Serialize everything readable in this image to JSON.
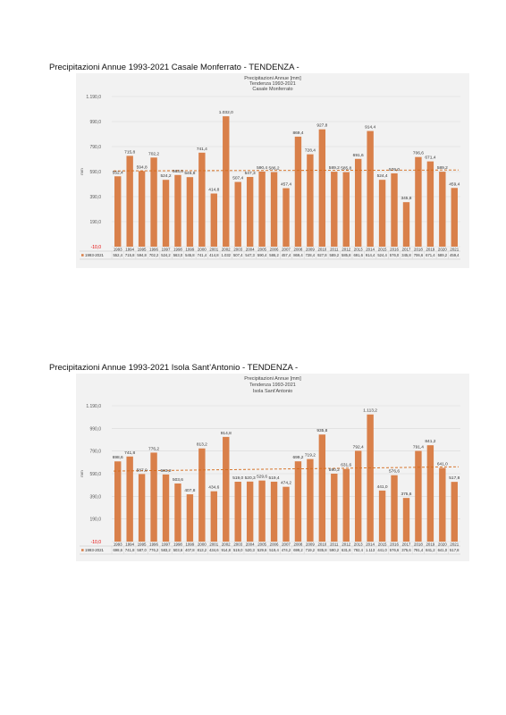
{
  "sections": [
    {
      "heading": "Precipitazioni Annue 1993-2021 Casale Monferrato - TENDENZA -",
      "chart_data": {
        "type": "bar",
        "title": [
          "Precipitazioni Annue [mm]",
          "Tendenza 1993-2021",
          "Casale Monferrato"
        ],
        "ylabel": "mm",
        "ylim": [
          -10,
          1190
        ],
        "yticks": [
          -10,
          190,
          390,
          590,
          790,
          990,
          1190
        ],
        "ytick_labels": [
          "-10,0",
          "190,0",
          "390,0",
          "590,0",
          "790,0",
          "990,0",
          "1.190,0"
        ],
        "categories": [
          "1993",
          "1994",
          "1995",
          "1996",
          "1997",
          "1998",
          "1999",
          "2000",
          "2001",
          "2002",
          "2003",
          "2004",
          "2005",
          "2006",
          "2007",
          "2008",
          "2009",
          "2010",
          "2011",
          "2012",
          "2013",
          "2014",
          "2015",
          "2016",
          "2017",
          "2018",
          "2019",
          "2020",
          "2021"
        ],
        "series": [
          {
            "name": "1993-2021",
            "values": [
              552.4,
              715.8,
              594.8,
              702.2,
              524.2,
              563.0,
              545.8,
              741.4,
              414.8,
              1032.0,
              507.4,
              547.3,
              590.4,
              586.2,
              457.4,
              869.4,
              728.4,
              927.8,
              589.2,
              585.8,
              691.6,
              914.4,
              524.4,
              576.0,
              345.8,
              706.6,
              671.4,
              589.2,
              459.4
            ],
            "labels": [
              "552,4",
              "715,8",
              "594,8",
              "702,2",
              "524,2",
              "563,0",
              "545,8",
              "741,4",
              "414,8",
              "1.032,0",
              "507,4",
              "547,3",
              "590,4",
              "586,2",
              "457,4",
              "869,4",
              "728,4",
              "927,8",
              "589,2",
              "585,8",
              "691,6",
              "914,4",
              "524,4",
              "576,0",
              "345,8",
              "706,6",
              "671,4",
              "589,2",
              "459,4"
            ],
            "table_labels": [
              "552,4",
              "715,8",
              "594,8",
              "702,2",
              "524,2",
              "563,0",
              "545,8",
              "741,4",
              "414,8",
              "1.032",
              "507,4",
              "547,3",
              "590,4",
              "586,2",
              "457,4",
              "869,4",
              "728,4",
              "927,8",
              "589,2",
              "585,8",
              "691,6",
              "914,4",
              "524,4",
              "576,0",
              "345,8",
              "706,6",
              "671,4",
              "589,2",
              "459,4"
            ]
          }
        ],
        "trend": [
          596,
          603
        ],
        "legend": "bottom-left data table",
        "colors": {
          "bar": "#d9804a",
          "trend": "#d46a1a",
          "label_neg": "#e60000"
        }
      }
    },
    {
      "heading": "Precipitazioni Annue 1993-2021 Isola Sant’Antonio - TENDENZA -",
      "chart_data": {
        "type": "bar",
        "title": [
          "Precipitazioni Annue [mm]",
          "Tendenza 1993-2021",
          "Isola Sant’Antonio"
        ],
        "ylabel": "mm",
        "ylim": [
          -10,
          1190
        ],
        "yticks": [
          -10,
          190,
          390,
          590,
          790,
          990,
          1190
        ],
        "ytick_labels": [
          "-10,0",
          "190,0",
          "390,0",
          "590,0",
          "790,0",
          "990,0",
          "1.190,0"
        ],
        "categories": [
          "1993",
          "1994",
          "1995",
          "1996",
          "1997",
          "1998",
          "1999",
          "2000",
          "2001",
          "2002",
          "2003",
          "2004",
          "2005",
          "2006",
          "2007",
          "2008",
          "2009",
          "2010",
          "2011",
          "2012",
          "2013",
          "2014",
          "2015",
          "2016",
          "2017",
          "2018",
          "2019",
          "2020",
          "2021"
        ],
        "series": [
          {
            "name": "1993-2021",
            "values": [
              698.6,
              741.8,
              587.0,
              776.2,
              583.2,
              503.6,
              407.8,
              813.2,
              434.6,
              914.8,
              519.0,
              520.3,
              529.6,
              519.4,
              474.2,
              699.2,
              719.2,
              935.8,
              590.2,
              631.6,
              792.4,
              1113.2,
              441.0,
              576.6,
              375.6,
              791.4,
              841.2,
              641.0,
              517.8
            ],
            "labels": [
              "698,6",
              "741,8",
              "587,0",
              "776,2",
              "583,2",
              "503,6",
              "407,8",
              "813,2",
              "434,6",
              "914,8",
              "519,0",
              "520,3",
              "529,6",
              "519,4",
              "474,2",
              "699,2",
              "719,2",
              "935,8",
              "590,2",
              "631,6",
              "792,4",
              "1.113,2",
              "441,0",
              "576,6",
              "375,6",
              "791,4",
              "841,2",
              "641,0",
              "517,8"
            ],
            "table_labels": [
              "698,6",
              "741,8",
              "587,0",
              "776,2",
              "583,2",
              "503,6",
              "407,8",
              "813,2",
              "434,6",
              "914,8",
              "519,0",
              "520,3",
              "529,6",
              "519,4",
              "474,2",
              "699,2",
              "719,2",
              "935,8",
              "590,2",
              "631,6",
              "792,4",
              "1.113",
              "441,0",
              "576,6",
              "375,6",
              "791,4",
              "841,2",
              "641,0",
              "517,8"
            ]
          }
        ],
        "trend": [
          613,
          651
        ],
        "legend": "bottom-left data table",
        "colors": {
          "bar": "#d9804a",
          "trend": "#d46a1a",
          "label_neg": "#e60000"
        }
      }
    }
  ]
}
